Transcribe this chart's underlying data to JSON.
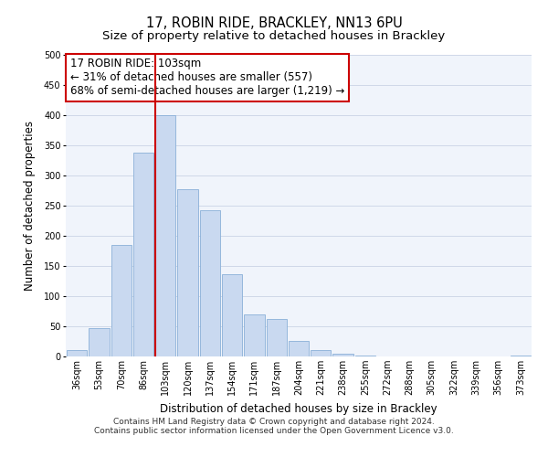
{
  "title": "17, ROBIN RIDE, BRACKLEY, NN13 6PU",
  "subtitle": "Size of property relative to detached houses in Brackley",
  "xlabel": "Distribution of detached houses by size in Brackley",
  "ylabel": "Number of detached properties",
  "bar_labels": [
    "36sqm",
    "53sqm",
    "70sqm",
    "86sqm",
    "103sqm",
    "120sqm",
    "137sqm",
    "154sqm",
    "171sqm",
    "187sqm",
    "204sqm",
    "221sqm",
    "238sqm",
    "255sqm",
    "272sqm",
    "288sqm",
    "305sqm",
    "322sqm",
    "339sqm",
    "356sqm",
    "373sqm"
  ],
  "bar_values": [
    10,
    47,
    185,
    338,
    400,
    277,
    242,
    137,
    70,
    62,
    26,
    10,
    4,
    1,
    0,
    0,
    0,
    0,
    0,
    0,
    2
  ],
  "bar_color": "#c9d9f0",
  "bar_edge_color": "#8ab0d8",
  "vline_x_index": 4,
  "vline_color": "#cc0000",
  "annotation_line1": "17 ROBIN RIDE: 103sqm",
  "annotation_line2": "← 31% of detached houses are smaller (557)",
  "annotation_line3": "68% of semi-detached houses are larger (1,219) →",
  "ylim": [
    0,
    500
  ],
  "yticks": [
    0,
    50,
    100,
    150,
    200,
    250,
    300,
    350,
    400,
    450,
    500
  ],
  "grid_color": "#d0d8e8",
  "bg_color": "#f0f4fb",
  "footer_line1": "Contains HM Land Registry data © Crown copyright and database right 2024.",
  "footer_line2": "Contains public sector information licensed under the Open Government Licence v3.0.",
  "title_fontsize": 10.5,
  "subtitle_fontsize": 9.5,
  "axis_label_fontsize": 8.5,
  "tick_fontsize": 7,
  "annotation_fontsize": 8.5,
  "footer_fontsize": 6.5
}
